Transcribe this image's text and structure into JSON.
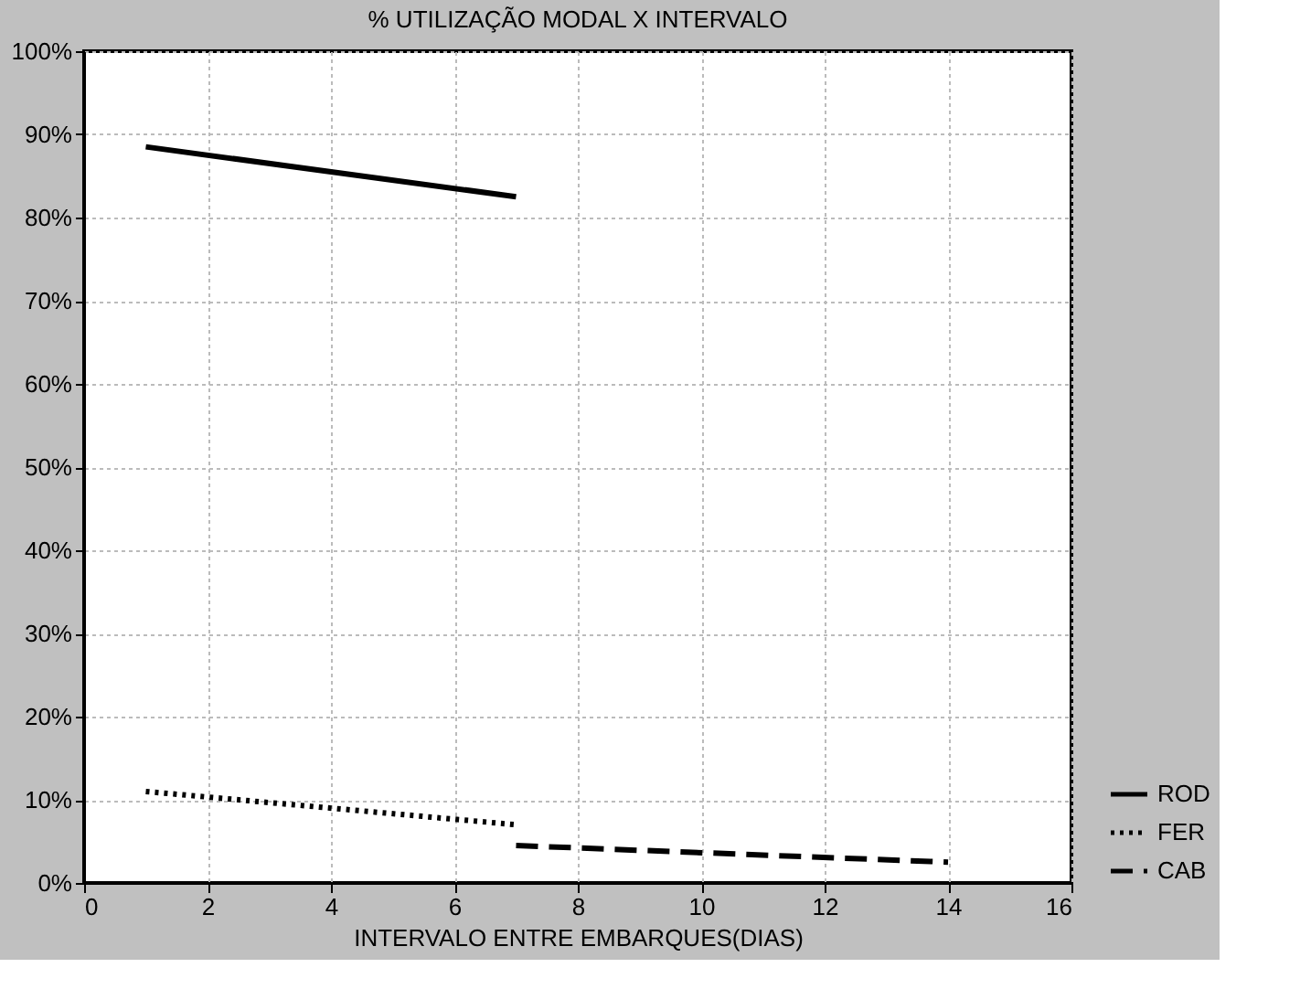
{
  "chart_data": {
    "type": "line",
    "title": "% UTILIZAÇÃO MODAL  X INTERVALO",
    "xlabel": "INTERVALO ENTRE EMBARQUES(DIAS)",
    "series": [
      {
        "name": "ROD",
        "color": "#000000",
        "line_style": "solid",
        "x": [
          1,
          7
        ],
        "values": [
          88.5,
          82.5
        ]
      },
      {
        "name": "FER",
        "color": "#000000",
        "line_style": "dotted",
        "x": [
          1,
          7
        ],
        "values": [
          11,
          7
        ]
      },
      {
        "name": "CAB",
        "color": "#000000",
        "line_style": "dashed",
        "x": [
          7,
          14
        ],
        "values": [
          4.5,
          2.5
        ]
      }
    ],
    "xlim": [
      0,
      16
    ],
    "xticks": [
      0,
      2,
      4,
      6,
      8,
      10,
      12,
      14,
      16
    ],
    "ylim": [
      0,
      100
    ],
    "yticks": [
      {
        "value": 0,
        "label": "0%"
      },
      {
        "value": 10,
        "label": "10%"
      },
      {
        "value": 20,
        "label": "20%"
      },
      {
        "value": 30,
        "label": "30%"
      },
      {
        "value": 40,
        "label": "40%"
      },
      {
        "value": 50,
        "label": "50%"
      },
      {
        "value": 60,
        "label": "60%"
      },
      {
        "value": 70,
        "label": "70%"
      },
      {
        "value": 80,
        "label": "80%"
      },
      {
        "value": 90,
        "label": "90%"
      },
      {
        "value": 100,
        "label": "100%"
      }
    ],
    "grid": true,
    "legend": "bottom right"
  }
}
